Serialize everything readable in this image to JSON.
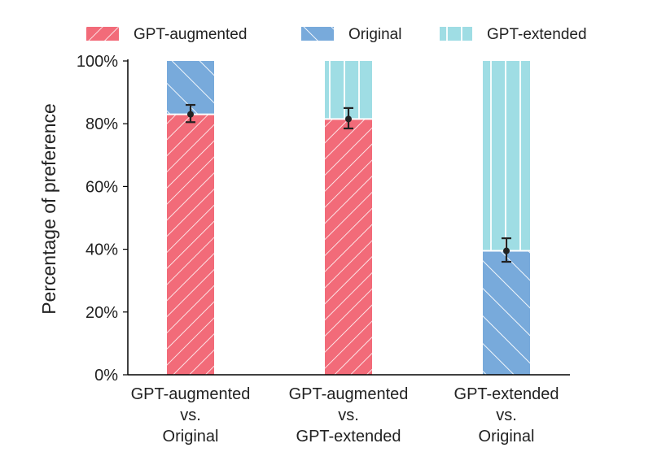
{
  "chart_data": {
    "type": "bar",
    "stacked": true,
    "categories": [
      [
        "GPT-augmented",
        "vs.",
        "Original"
      ],
      [
        "GPT-augmented",
        "vs.",
        "GPT-extended"
      ],
      [
        "GPT-extended",
        "vs.",
        "Original"
      ]
    ],
    "series": [
      {
        "name": "GPT-augmented",
        "color": "#f26b79",
        "hatch": "forward-diagonal",
        "values": [
          83,
          81.5,
          0
        ]
      },
      {
        "name": "Original",
        "color": "#78aadb",
        "hatch": "back-diagonal",
        "values": [
          17,
          0,
          39.5
        ]
      },
      {
        "name": "GPT-extended",
        "color": "#9fdde4",
        "hatch": "vertical",
        "values": [
          0,
          18.5,
          60.5
        ]
      }
    ],
    "error_bars": [
      {
        "center": 83,
        "low": 80.5,
        "high": 86
      },
      {
        "center": 81.5,
        "low": 78.5,
        "high": 85
      },
      {
        "center": 39.5,
        "low": 36,
        "high": 43.5
      }
    ],
    "ylabel": "Percentage of preference",
    "xlabel": "",
    "ylim": [
      0,
      100
    ],
    "yticks": [
      "0%",
      "20%",
      "40%",
      "60%",
      "80%",
      "100%"
    ],
    "legend_position": "top",
    "grid": false
  }
}
